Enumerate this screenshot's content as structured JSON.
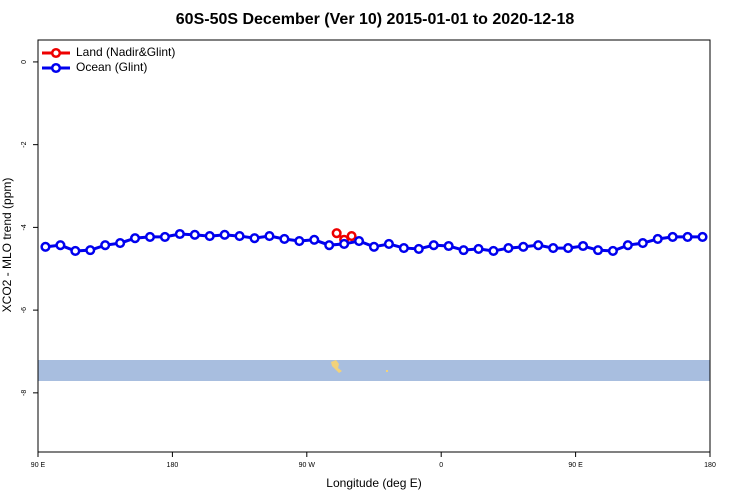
{
  "chart_data": {
    "type": "line",
    "title": "60S-50S December (Ver 10)   2015-01-01 to 2020-12-18",
    "x_label": "Longitude (deg E)",
    "y_label": "XCO2 - MLO trend (ppm)",
    "xlim": [
      90,
      540
    ],
    "xticks": [
      {
        "value": 90,
        "label": "90 E"
      },
      180,
      {
        "value": 270,
        "label": "90 W"
      },
      {
        "value": 360,
        "label": "0"
      },
      {
        "value": 450,
        "label": "90 E"
      },
      {
        "value": 540,
        "label": "180"
      }
    ],
    "ylim": [
      -9.43,
      0.53
    ],
    "yticks": [
      0,
      -2,
      -4,
      -6,
      -8
    ],
    "grid": false,
    "legend": "top-left",
    "series": [
      {
        "name": "Land (Nadir&Glint)",
        "color": "#ee0000",
        "x": [
          290,
          295,
          300
        ],
        "values": [
          -4.14,
          -4.3,
          -4.21
        ]
      },
      {
        "name": "Ocean (Glint)",
        "color": "#0000ee",
        "x": [
          95,
          105,
          115,
          125,
          135,
          145,
          155,
          165,
          175,
          185,
          195,
          205,
          215,
          225,
          235,
          245,
          255,
          265,
          275,
          285,
          295,
          305,
          315,
          325,
          335,
          345,
          355,
          365,
          375,
          385,
          395,
          405,
          415,
          425,
          435,
          445,
          455,
          465,
          475,
          485,
          495,
          505,
          515,
          525,
          535
        ],
        "values": [
          -4.47,
          -4.43,
          -4.57,
          -4.55,
          -4.43,
          -4.38,
          -4.26,
          -4.23,
          -4.23,
          -4.16,
          -4.18,
          -4.21,
          -4.18,
          -4.21,
          -4.26,
          -4.21,
          -4.28,
          -4.33,
          -4.3,
          -4.43,
          -4.4,
          -4.33,
          -4.47,
          -4.4,
          -4.5,
          -4.52,
          -4.43,
          -4.45,
          -4.55,
          -4.52,
          -4.57,
          -4.5,
          -4.47,
          -4.43,
          -4.5,
          -4.5,
          -4.45,
          -4.55,
          -4.57,
          -4.43,
          -4.38,
          -4.28,
          -4.23,
          -4.23,
          -4.23
        ]
      }
    ]
  }
}
